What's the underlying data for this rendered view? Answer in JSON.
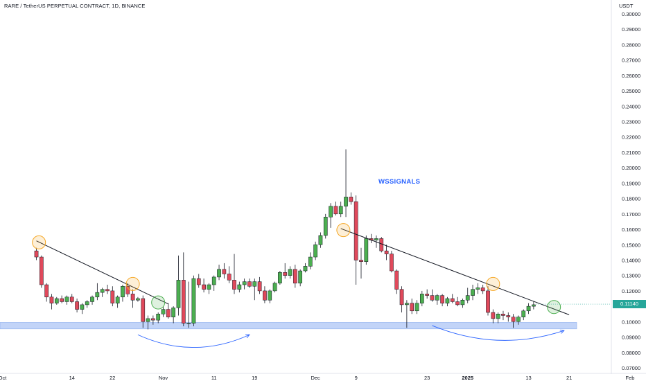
{
  "header": {
    "title": "RARE / TetherUS PERPETUAL CONTRACT, 1D, BINANCE"
  },
  "axis": {
    "unit": "USDT"
  },
  "current_price": {
    "label": "0.11140",
    "color": "#26a69a"
  },
  "annotation": {
    "text": "WSSIGNALS",
    "color": "#2962ff"
  },
  "colors": {
    "up": "#4caf50",
    "down": "#e0495b",
    "wick": "#131722",
    "support_zone": "#aec6f5",
    "circle_orange": "#f5a623",
    "circle_green": "#4caf50",
    "trendline": "#131722",
    "arrow": "#2962ff"
  },
  "chart_data": {
    "type": "candlestick",
    "title": "RARE / TetherUS PERPETUAL CONTRACT, 1D, BINANCE",
    "ylim": [
      0.068,
      0.302
    ],
    "y_ticks": [
      "0.30000",
      "0.29000",
      "0.28000",
      "0.27000",
      "0.26000",
      "0.25000",
      "0.24000",
      "0.23000",
      "0.22000",
      "0.21000",
      "0.20000",
      "0.19000",
      "0.18000",
      "0.17000",
      "0.16000",
      "0.15000",
      "0.14000",
      "0.13000",
      "0.12000",
      "0.11000",
      "0.10000",
      "0.09000",
      "0.08000",
      "0.07000"
    ],
    "x_ticks": [
      "Oct",
      "14",
      "22",
      "Nov",
      "11",
      "19",
      "Dec",
      "9",
      "23",
      "2025",
      "13",
      "21",
      "Feb"
    ],
    "x_tick_days": [
      -0.7,
      13,
      21,
      31,
      41,
      49,
      61,
      69,
      83,
      91,
      103,
      111,
      123
    ],
    "start_day": 6,
    "candles": [
      [
        0.146,
        0.148,
        0.14,
        0.142
      ],
      [
        0.142,
        0.143,
        0.122,
        0.124
      ],
      [
        0.124,
        0.125,
        0.113,
        0.116
      ],
      [
        0.116,
        0.118,
        0.108,
        0.112
      ],
      [
        0.112,
        0.116,
        0.111,
        0.115
      ],
      [
        0.115,
        0.117,
        0.112,
        0.113
      ],
      [
        0.113,
        0.117,
        0.111,
        0.116
      ],
      [
        0.116,
        0.118,
        0.112,
        0.113
      ],
      [
        0.113,
        0.115,
        0.106,
        0.108
      ],
      [
        0.108,
        0.112,
        0.105,
        0.111
      ],
      [
        0.111,
        0.114,
        0.109,
        0.113
      ],
      [
        0.113,
        0.117,
        0.111,
        0.116
      ],
      [
        0.116,
        0.125,
        0.114,
        0.119
      ],
      [
        0.119,
        0.122,
        0.116,
        0.121
      ],
      [
        0.121,
        0.124,
        0.118,
        0.12
      ],
      [
        0.12,
        0.123,
        0.11,
        0.112
      ],
      [
        0.112,
        0.117,
        0.109,
        0.116
      ],
      [
        0.116,
        0.124,
        0.113,
        0.123
      ],
      [
        0.123,
        0.125,
        0.116,
        0.118
      ],
      [
        0.118,
        0.121,
        0.109,
        0.114
      ],
      [
        0.114,
        0.116,
        0.113,
        0.115
      ],
      [
        0.115,
        0.117,
        0.096,
        0.1
      ],
      [
        0.1,
        0.104,
        0.095,
        0.102
      ],
      [
        0.102,
        0.104,
        0.098,
        0.101
      ],
      [
        0.101,
        0.106,
        0.099,
        0.105
      ],
      [
        0.105,
        0.11,
        0.103,
        0.108
      ],
      [
        0.108,
        0.112,
        0.102,
        0.103
      ],
      [
        0.103,
        0.11,
        0.099,
        0.109
      ],
      [
        0.109,
        0.143,
        0.104,
        0.127
      ],
      [
        0.127,
        0.145,
        0.097,
        0.099
      ],
      [
        0.099,
        0.126,
        0.096,
        0.099
      ],
      [
        0.099,
        0.13,
        0.097,
        0.128
      ],
      [
        0.128,
        0.131,
        0.122,
        0.124
      ],
      [
        0.124,
        0.128,
        0.119,
        0.121
      ],
      [
        0.121,
        0.125,
        0.118,
        0.124
      ],
      [
        0.124,
        0.13,
        0.12,
        0.129
      ],
      [
        0.129,
        0.137,
        0.127,
        0.134
      ],
      [
        0.134,
        0.138,
        0.128,
        0.131
      ],
      [
        0.131,
        0.136,
        0.125,
        0.127
      ],
      [
        0.127,
        0.144,
        0.118,
        0.121
      ],
      [
        0.121,
        0.126,
        0.119,
        0.124
      ],
      [
        0.124,
        0.128,
        0.121,
        0.126
      ],
      [
        0.126,
        0.128,
        0.122,
        0.123
      ],
      [
        0.123,
        0.128,
        0.114,
        0.126
      ],
      [
        0.126,
        0.129,
        0.118,
        0.12
      ],
      [
        0.12,
        0.123,
        0.112,
        0.114
      ],
      [
        0.114,
        0.121,
        0.112,
        0.12
      ],
      [
        0.12,
        0.126,
        0.119,
        0.125
      ],
      [
        0.125,
        0.133,
        0.124,
        0.132
      ],
      [
        0.132,
        0.138,
        0.128,
        0.13
      ],
      [
        0.13,
        0.136,
        0.128,
        0.134
      ],
      [
        0.134,
        0.137,
        0.122,
        0.125
      ],
      [
        0.125,
        0.134,
        0.123,
        0.133
      ],
      [
        0.133,
        0.138,
        0.132,
        0.136
      ],
      [
        0.136,
        0.145,
        0.134,
        0.142
      ],
      [
        0.142,
        0.152,
        0.14,
        0.15
      ],
      [
        0.15,
        0.158,
        0.148,
        0.156
      ],
      [
        0.156,
        0.17,
        0.154,
        0.168
      ],
      [
        0.168,
        0.177,
        0.161,
        0.175
      ],
      [
        0.175,
        0.178,
        0.169,
        0.17
      ],
      [
        0.17,
        0.178,
        0.168,
        0.175
      ],
      [
        0.175,
        0.212,
        0.168,
        0.181
      ],
      [
        0.181,
        0.184,
        0.176,
        0.178
      ],
      [
        0.178,
        0.182,
        0.124,
        0.14
      ],
      [
        0.14,
        0.148,
        0.128,
        0.139
      ],
      [
        0.139,
        0.156,
        0.137,
        0.154
      ],
      [
        0.154,
        0.157,
        0.151,
        0.153
      ],
      [
        0.153,
        0.156,
        0.148,
        0.154
      ],
      [
        0.154,
        0.155,
        0.145,
        0.146
      ],
      [
        0.146,
        0.15,
        0.14,
        0.144
      ],
      [
        0.144,
        0.146,
        0.132,
        0.133
      ],
      [
        0.133,
        0.134,
        0.118,
        0.121
      ],
      [
        0.121,
        0.123,
        0.106,
        0.111
      ],
      [
        0.111,
        0.114,
        0.096,
        0.112
      ],
      [
        0.112,
        0.115,
        0.105,
        0.107
      ],
      [
        0.107,
        0.114,
        0.105,
        0.112
      ],
      [
        0.112,
        0.12,
        0.11,
        0.118
      ],
      [
        0.118,
        0.121,
        0.115,
        0.117
      ],
      [
        0.117,
        0.121,
        0.113,
        0.114
      ],
      [
        0.114,
        0.118,
        0.111,
        0.117
      ],
      [
        0.117,
        0.118,
        0.11,
        0.112
      ],
      [
        0.112,
        0.116,
        0.11,
        0.115
      ],
      [
        0.115,
        0.118,
        0.112,
        0.113
      ],
      [
        0.113,
        0.116,
        0.11,
        0.111
      ],
      [
        0.111,
        0.115,
        0.109,
        0.114
      ],
      [
        0.114,
        0.122,
        0.112,
        0.117
      ],
      [
        0.117,
        0.124,
        0.114,
        0.121
      ],
      [
        0.121,
        0.125,
        0.118,
        0.122
      ],
      [
        0.122,
        0.124,
        0.118,
        0.12
      ],
      [
        0.12,
        0.123,
        0.104,
        0.106
      ],
      [
        0.106,
        0.108,
        0.099,
        0.102
      ],
      [
        0.102,
        0.106,
        0.099,
        0.105
      ],
      [
        0.105,
        0.107,
        0.101,
        0.104
      ],
      [
        0.104,
        0.106,
        0.1,
        0.103
      ],
      [
        0.103,
        0.105,
        0.096,
        0.1
      ],
      [
        0.1,
        0.104,
        0.098,
        0.103
      ],
      [
        0.103,
        0.108,
        0.101,
        0.107
      ],
      [
        0.107,
        0.112,
        0.105,
        0.11
      ],
      [
        0.11,
        0.113,
        0.108,
        0.111
      ]
    ],
    "support_zone": [
      0.0953,
      0.0995
    ],
    "trendlines": [
      {
        "from_day": 6,
        "from_price": 0.1525,
        "to_day": 32,
        "to_price": 0.1115
      },
      {
        "from_day": 66,
        "from_price": 0.1605,
        "to_day": 111,
        "to_price": 0.1045
      }
    ],
    "circles": [
      {
        "day": 6.5,
        "price": 0.1515,
        "color": "orange"
      },
      {
        "day": 25,
        "price": 0.1245,
        "color": "orange"
      },
      {
        "day": 30,
        "price": 0.1125,
        "color": "green"
      },
      {
        "day": 66.5,
        "price": 0.1595,
        "color": "orange"
      },
      {
        "day": 96,
        "price": 0.1245,
        "color": "orange"
      },
      {
        "day": 108,
        "price": 0.1095,
        "color": "green"
      }
    ],
    "arrows": [
      {
        "start_day": 26,
        "start_price": 0.0915,
        "control_day": 37,
        "control_price": 0.075,
        "end_day": 48,
        "end_price": 0.0915
      },
      {
        "start_day": 84,
        "start_price": 0.0975,
        "control_day": 97,
        "control_price": 0.08,
        "end_day": 110,
        "end_price": 0.0942
      }
    ]
  }
}
